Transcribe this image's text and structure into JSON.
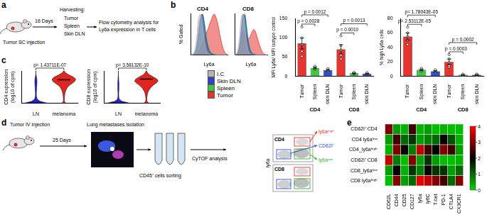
{
  "panel_labels": [
    "a",
    "b",
    "c",
    "d",
    "e"
  ],
  "schematic_a": {
    "injection": "Tumor SC injection",
    "days": "16 Days",
    "harvest_title": "Harvesting:",
    "harvest_items": [
      "Tumor",
      "Spleen",
      "Skin DLN"
    ],
    "analysis": [
      "Flow cytometry analysis for",
      "Ly6a expression in T cells"
    ]
  },
  "schematic_d": {
    "injection": "Tumor IV injection",
    "days": "25 Days",
    "isolation": "Lung metastases isolation",
    "sorting": "CD45⁺ cells sorting",
    "analysis": "CyTOF analysis",
    "flow_axis": "ly6a",
    "flow_gates": [
      "CD4",
      "CD8"
    ],
    "flow_labels": [
      "ly6aʰⁱᵍʰ",
      "CD62l⁺",
      "ly6aˡᵒʷ"
    ]
  },
  "chart_data": [
    {
      "type": "area",
      "title": "CD4",
      "xlabel": "Ly6a",
      "ylabel": "% Gated",
      "tick_labels": false,
      "legend": "bottom",
      "x": [
        0,
        1,
        2,
        3,
        4,
        5,
        6,
        7,
        8,
        9,
        10,
        11,
        12,
        13,
        14,
        15,
        16,
        17,
        18,
        19
      ],
      "xlim": [
        0,
        19
      ],
      "ylim": [
        0,
        100
      ],
      "series": [
        {
          "name": "I.C",
          "color": "#b4b4b4",
          "values": [
            0,
            2,
            10,
            40,
            90,
            100,
            70,
            35,
            12,
            4,
            1,
            0,
            0,
            0,
            0,
            0,
            0,
            0,
            0,
            0
          ]
        },
        {
          "name": "Skin DLN",
          "color": "#2f3fd6",
          "values": [
            0,
            1,
            5,
            20,
            55,
            90,
            100,
            75,
            40,
            18,
            7,
            3,
            1,
            0,
            0,
            0,
            0,
            0,
            0,
            0
          ]
        },
        {
          "name": "Spleen",
          "color": "#3ec93e",
          "values": [
            0,
            1,
            4,
            15,
            45,
            85,
            100,
            80,
            48,
            22,
            9,
            4,
            2,
            1,
            0,
            0,
            0,
            0,
            0,
            0
          ]
        },
        {
          "name": "Tumor",
          "color": "#e8342f",
          "values": [
            0,
            0,
            1,
            3,
            8,
            15,
            25,
            38,
            52,
            65,
            78,
            90,
            100,
            92,
            75,
            50,
            28,
            12,
            4,
            1
          ]
        }
      ]
    },
    {
      "type": "area",
      "title": "CD8",
      "xlabel": "Ly6a",
      "tick_labels": false,
      "x": [
        0,
        1,
        2,
        3,
        4,
        5,
        6,
        7,
        8,
        9,
        10,
        11,
        12,
        13,
        14,
        15,
        16,
        17,
        18,
        19
      ],
      "xlim": [
        0,
        19
      ],
      "ylim": [
        0,
        100
      ],
      "series": [
        {
          "name": "I.C",
          "color": "#b4b4b4",
          "values": [
            0,
            3,
            15,
            50,
            95,
            100,
            65,
            30,
            10,
            3,
            1,
            0,
            0,
            0,
            0,
            0,
            0,
            0,
            0,
            0
          ]
        },
        {
          "name": "Skin DLN",
          "color": "#2f3fd6",
          "values": [
            0,
            1,
            6,
            25,
            65,
            100,
            95,
            60,
            30,
            12,
            5,
            2,
            1,
            0,
            0,
            0,
            0,
            0,
            0,
            0
          ]
        },
        {
          "name": "Spleen",
          "color": "#3ec93e",
          "values": [
            0,
            1,
            5,
            22,
            60,
            95,
            100,
            70,
            35,
            15,
            6,
            2,
            1,
            0,
            0,
            0,
            0,
            0,
            0,
            0
          ]
        },
        {
          "name": "Tumor",
          "color": "#e8342f",
          "values": [
            0,
            1,
            6,
            20,
            45,
            60,
            55,
            45,
            40,
            45,
            55,
            62,
            58,
            45,
            30,
            18,
            8,
            3,
            1,
            0
          ]
        }
      ]
    },
    {
      "type": "bar",
      "ylabel": "MFI Ly6a/ MFI isotype control",
      "categories": [
        "Tumor",
        "Spleen",
        "skin DLN",
        "Tumor",
        "Spleen",
        "skin DLN"
      ],
      "groups": [
        "CD4",
        "CD4",
        "CD4",
        "CD8",
        "CD8",
        "CD8"
      ],
      "values": [
        85,
        22,
        16,
        70,
        8,
        7
      ],
      "errors": [
        14,
        2,
        2,
        12,
        1,
        1
      ],
      "points": [
        [
          128,
          100,
          82,
          65,
          52
        ],
        [
          26,
          24,
          22,
          20,
          18
        ],
        [
          20,
          18,
          16,
          14,
          12
        ],
        [
          105,
          80,
          68,
          55,
          45
        ],
        [
          10,
          9,
          8,
          7,
          6
        ],
        [
          9,
          8,
          7,
          6,
          5
        ]
      ],
      "colors": [
        "#e8342f",
        "#3ec93e",
        "#2f4fd6",
        "#e8342f",
        "#3ec93e",
        "#2f4fd6"
      ],
      "ylim": [
        0,
        150
      ],
      "yticks": [
        0,
        50,
        100,
        150
      ],
      "annotations": [
        {
          "from": 0,
          "to": 1,
          "label": "p = 0.0028"
        },
        {
          "from": 0,
          "to": 2,
          "label": "p = 0.0012"
        },
        {
          "from": 3,
          "to": 4,
          "label": "p = 0.0010"
        },
        {
          "from": 3,
          "to": 5,
          "label": "p = 0.0013"
        }
      ]
    },
    {
      "type": "bar",
      "ylabel": "% high Ly6a cells",
      "categories": [
        "Tumor",
        "Spleen",
        "skin DLN",
        "Tumor",
        "Spleen",
        "skin DLN"
      ],
      "groups": [
        "CD4",
        "CD4",
        "CD4",
        "CD8",
        "CD8",
        "CD8"
      ],
      "values": [
        55,
        9,
        7,
        20,
        2,
        2
      ],
      "errors": [
        5,
        1,
        1,
        4,
        0.5,
        0.5
      ],
      "points": [
        [
          68,
          60,
          55,
          50,
          44
        ],
        [
          11,
          10,
          9,
          8,
          7
        ],
        [
          9,
          8,
          7,
          6,
          5
        ],
        [
          30,
          24,
          19,
          15,
          13
        ],
        [
          3,
          2.5,
          2,
          1.5,
          1
        ],
        [
          3,
          2.5,
          2,
          1.5,
          1
        ]
      ],
      "colors": [
        "#e8342f",
        "#3ec93e",
        "#2f4fd6",
        "#e8342f",
        "#3ec93e",
        "#2f4fd6"
      ],
      "ylim": [
        0,
        80
      ],
      "yticks": [
        0,
        20,
        40,
        60,
        80
      ],
      "annotations": [
        {
          "from": 0,
          "to": 1,
          "label": "p= 2.53112E-05"
        },
        {
          "from": 0,
          "to": 2,
          "label": "p= 1.78043E-05"
        },
        {
          "from": 3,
          "to": 4,
          "label": "p = 0.0003"
        },
        {
          "from": 3,
          "to": 5,
          "label": "p = 0.0002"
        }
      ]
    },
    {
      "type": "violin",
      "ylabel": [
        "CD4 expression",
        "(log10 of cpm)"
      ],
      "tick_labels": "x",
      "categories": [
        "LN",
        "melanoma"
      ],
      "colors": [
        "#2424c8",
        "#e0241f"
      ],
      "y": [
        0,
        0.25,
        0.5,
        0.75,
        1,
        1.25,
        1.5,
        1.75,
        2,
        2.25,
        2.5,
        2.75,
        3,
        3.25,
        3.5,
        3.75,
        4
      ],
      "density": [
        [
          1.0,
          0.35,
          0.12,
          0.06,
          0.04,
          0.04,
          0.05,
          0.06,
          0.07,
          0.08,
          0.09,
          0.09,
          0.08,
          0.05,
          0.02,
          0,
          0
        ],
        [
          0.15,
          0.05,
          0.04,
          0.05,
          0.07,
          0.1,
          0.15,
          0.22,
          0.32,
          0.5,
          0.75,
          0.95,
          1.0,
          0.8,
          0.45,
          0.15,
          0.02
        ]
      ],
      "medians": [
        0,
        2.9
      ],
      "ylim": [
        0,
        4
      ],
      "annotations": [
        {
          "from": 0,
          "to": 1,
          "label": "p= 1.43711E-07"
        }
      ]
    },
    {
      "type": "violin",
      "ylabel": [
        "CD8 expression",
        "(log10 of cpm)"
      ],
      "tick_labels": "x",
      "categories": [
        "LN",
        "melanoma"
      ],
      "colors": [
        "#2424c8",
        "#e0241f"
      ],
      "y": [
        0,
        0.25,
        0.5,
        0.75,
        1,
        1.25,
        1.5,
        1.75,
        2,
        2.25,
        2.5,
        2.75,
        3,
        3.25,
        3.5,
        3.75,
        4
      ],
      "density": [
        [
          1.0,
          0.3,
          0.08,
          0.04,
          0.03,
          0.03,
          0.04,
          0.05,
          0.05,
          0.05,
          0.05,
          0.04,
          0.03,
          0.02,
          0.01,
          0,
          0
        ],
        [
          0.2,
          0.06,
          0.04,
          0.05,
          0.08,
          0.12,
          0.18,
          0.28,
          0.42,
          0.6,
          0.85,
          1.0,
          0.9,
          0.6,
          0.3,
          0.1,
          0.02
        ]
      ],
      "medians": [
        0,
        3.0
      ],
      "ylim": [
        0,
        4
      ],
      "annotations": [
        {
          "from": 0,
          "to": 1,
          "label": "p= 3.58132E-10"
        }
      ]
    },
    {
      "type": "heatmap",
      "x": [
        "CD62L",
        "CD44",
        "CD25",
        "CD127",
        "ly6a",
        "ly6C",
        "T-bet",
        "PD-1",
        "CTLA4",
        "CX3CR1"
      ],
      "y": [
        "CD62l⁺ CD4",
        "CD4 ly6aˡᵒʷ",
        "CD4_ly6aʰⁱᵍʰ",
        "CD62l⁺ CD8",
        "CD8_ly6aˡᵒʷ",
        "CD8 ly6aʰⁱᵍʰ"
      ],
      "values": [
        [
          3.0,
          0.5,
          0.3,
          2.5,
          0.3,
          0.5,
          0.2,
          0.3,
          0.2,
          0.2
        ],
        [
          0.5,
          2.5,
          1.0,
          1.5,
          0.5,
          0.8,
          1.0,
          2.0,
          1.2,
          0.3
        ],
        [
          0.3,
          3.0,
          2.0,
          0.8,
          3.5,
          2.5,
          2.0,
          3.0,
          2.5,
          0.5
        ],
        [
          3.5,
          0.8,
          0.2,
          3.0,
          0.5,
          1.5,
          0.5,
          0.2,
          0.2,
          0.3
        ],
        [
          0.5,
          2.0,
          0.3,
          1.5,
          0.8,
          2.0,
          1.5,
          1.5,
          0.5,
          1.0
        ],
        [
          0.2,
          3.0,
          0.5,
          1.0,
          3.8,
          3.5,
          3.0,
          2.5,
          1.0,
          3.0
        ]
      ],
      "colorbar": {
        "range": [
          0,
          4
        ],
        "ticks": [
          0,
          1,
          2,
          3,
          4
        ]
      }
    }
  ]
}
